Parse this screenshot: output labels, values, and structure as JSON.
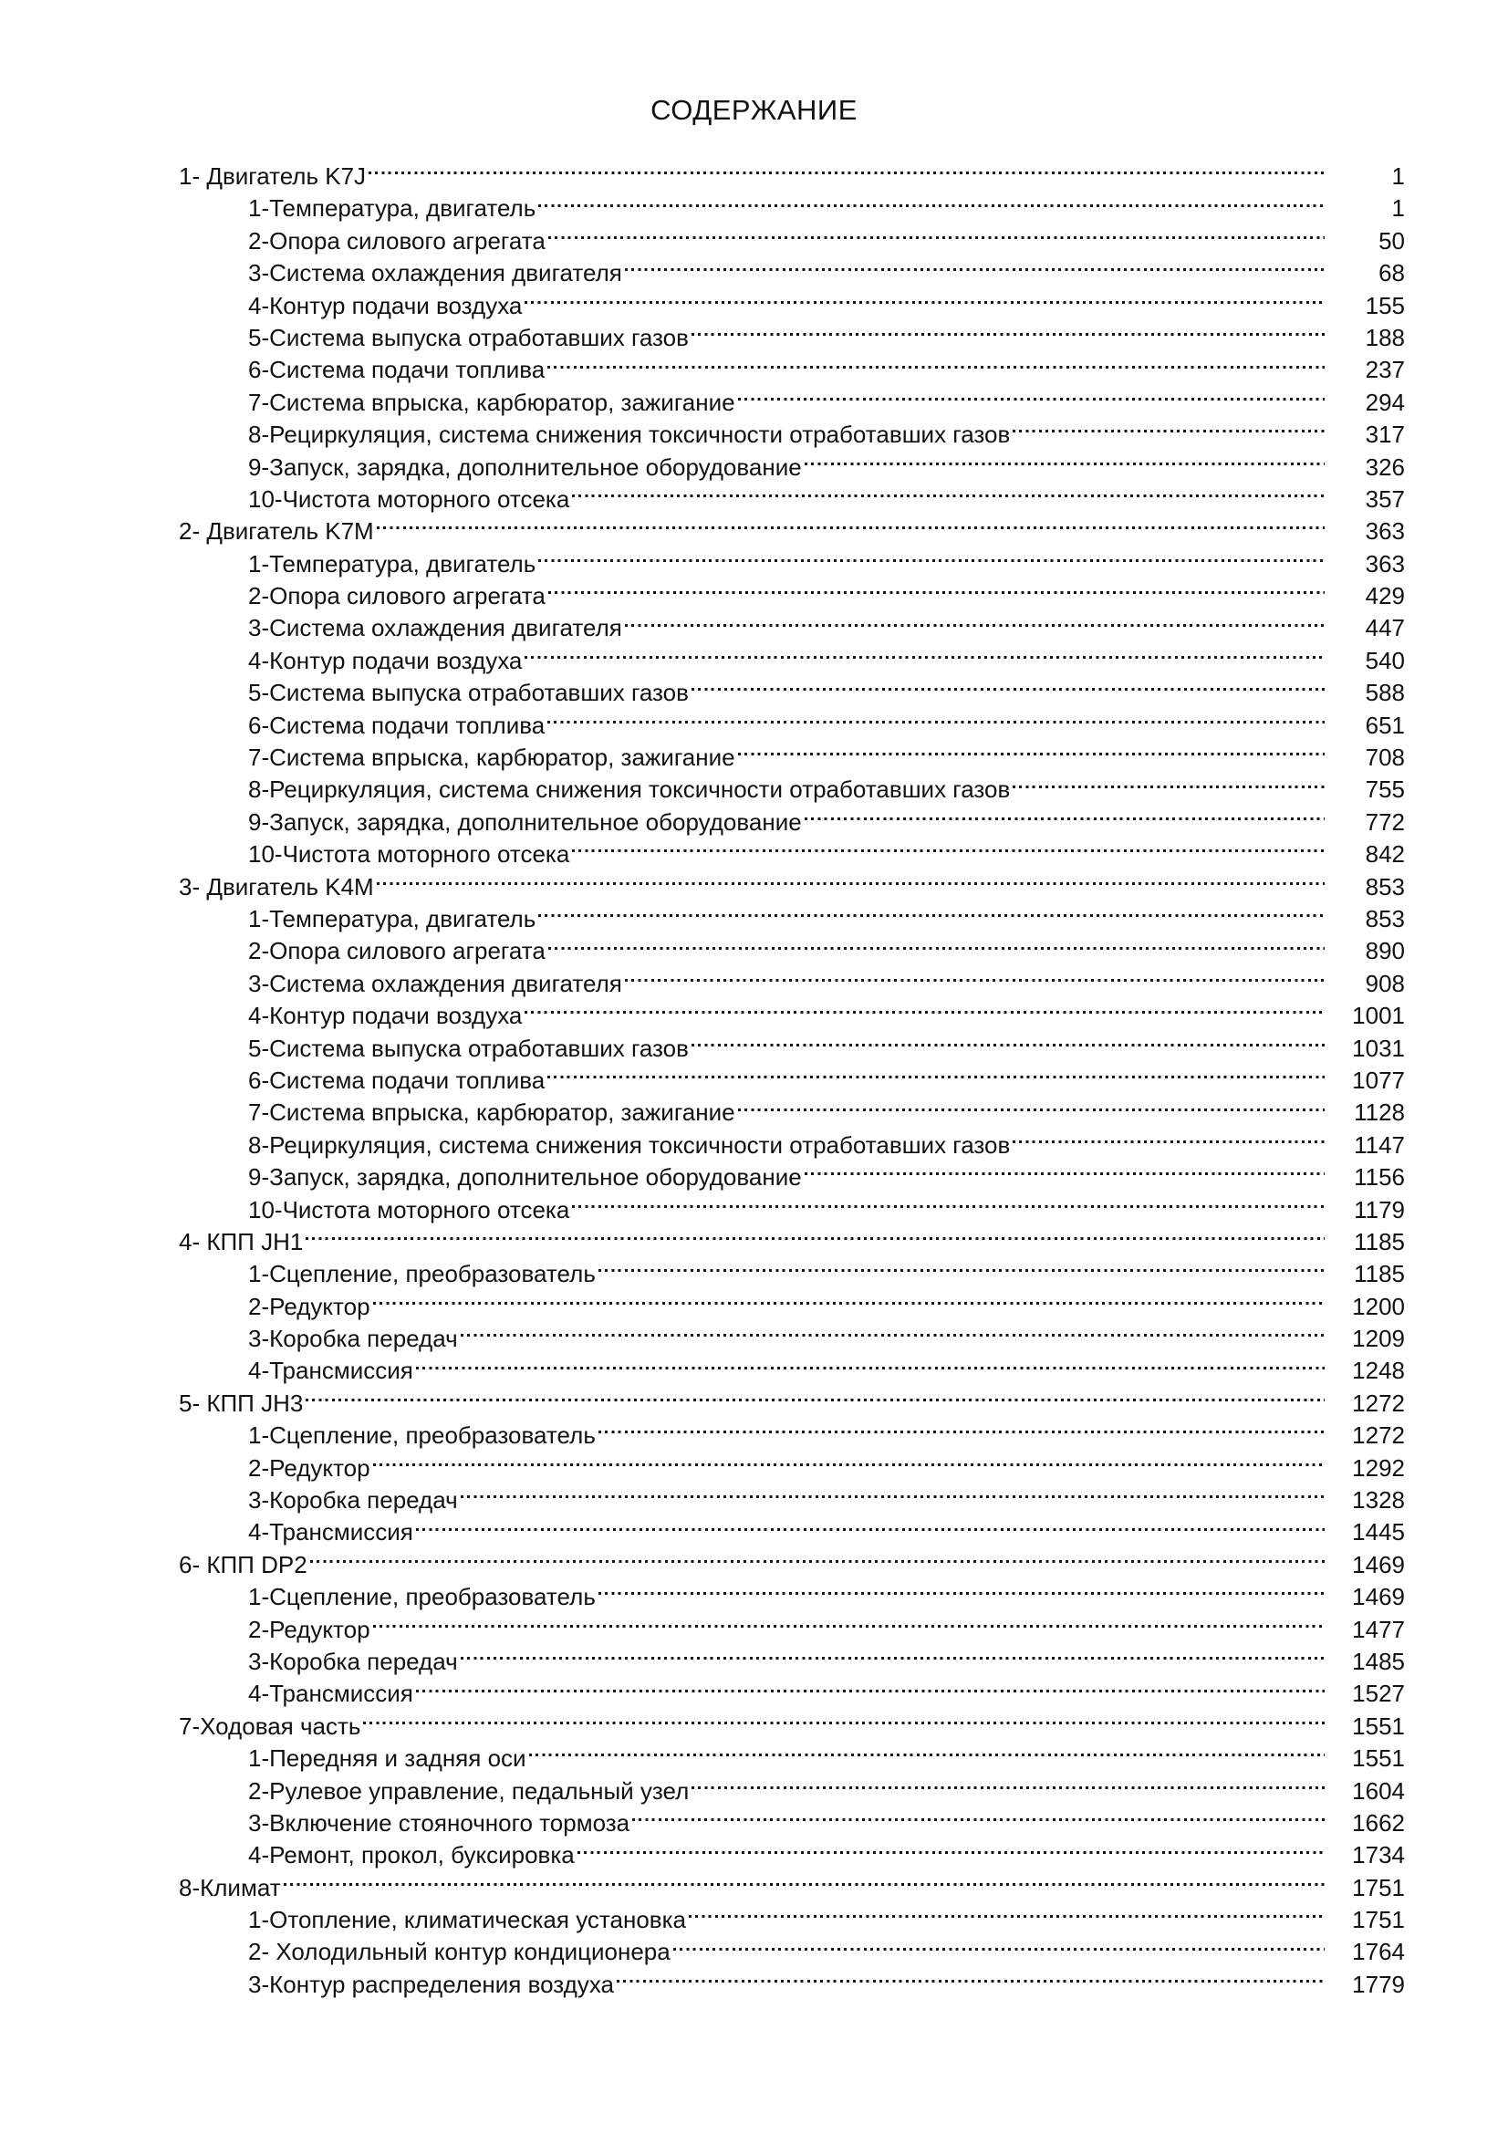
{
  "page": {
    "title": "СОДЕРЖАНИЕ"
  },
  "toc": {
    "sections": [
      {
        "label": "1- Двигатель K7J",
        "page": "1",
        "items": [
          {
            "label": "1-Температура, двигатель",
            "page": "1"
          },
          {
            "label": "2-Опора силового агрегата",
            "page": "50"
          },
          {
            "label": "3-Система охлаждения двигателя",
            "page": "68"
          },
          {
            "label": "4-Контур подачи воздуха",
            "page": "155"
          },
          {
            "label": "5-Система выпуска отработавших газов",
            "page": "188"
          },
          {
            "label": "6-Система подачи топлива",
            "page": "237"
          },
          {
            "label": "7-Система впрыска, карбюратор, зажигание",
            "page": "294"
          },
          {
            "label": "8-Рециркуляция, система снижения токсичности отработавших газов",
            "page": "317"
          },
          {
            "label": "9-Запуск, зарядка, дополнительное оборудование",
            "page": "326"
          },
          {
            "label": "10-Чистота моторного отсека",
            "page": "357"
          }
        ]
      },
      {
        "label": "2- Двигатель K7M",
        "page": "363",
        "items": [
          {
            "label": "1-Температура, двигатель",
            "page": "363"
          },
          {
            "label": "2-Опора силового агрегата",
            "page": "429"
          },
          {
            "label": "3-Система охлаждения двигателя",
            "page": "447"
          },
          {
            "label": "4-Контур подачи воздуха",
            "page": "540"
          },
          {
            "label": "5-Система выпуска отработавших газов",
            "page": "588"
          },
          {
            "label": "6-Система подачи топлива",
            "page": "651"
          },
          {
            "label": "7-Система впрыска, карбюратор, зажигание",
            "page": "708"
          },
          {
            "label": "8-Рециркуляция, система снижения токсичности отработавших газов",
            "page": "755"
          },
          {
            "label": "9-Запуск, зарядка, дополнительное оборудование",
            "page": "772"
          },
          {
            "label": "10-Чистота моторного отсека",
            "page": "842"
          }
        ]
      },
      {
        "label": "3- Двигатель K4M",
        "page": "853",
        "items": [
          {
            "label": "1-Температура, двигатель",
            "page": "853"
          },
          {
            "label": "2-Опора силового агрегата",
            "page": "890"
          },
          {
            "label": "3-Система охлаждения двигателя",
            "page": "908"
          },
          {
            "label": "4-Контур подачи воздуха",
            "page": "1001"
          },
          {
            "label": "5-Система выпуска отработавших газов",
            "page": "1031"
          },
          {
            "label": "6-Система подачи топлива",
            "page": "1077"
          },
          {
            "label": "7-Система впрыска, карбюратор, зажигание",
            "page": "1128"
          },
          {
            "label": "8-Рециркуляция, система снижения токсичности отработавших газов",
            "page": "1147"
          },
          {
            "label": "9-Запуск, зарядка, дополнительное оборудование",
            "page": "1156"
          },
          {
            "label": "10-Чистота моторного отсека",
            "page": "1179"
          }
        ]
      },
      {
        "label": "4- КПП JH1",
        "page": "1185",
        "items": [
          {
            "label": "1-Сцепление, преобразователь",
            "page": "1185"
          },
          {
            "label": "2-Редуктор",
            "page": "1200"
          },
          {
            "label": "3-Коробка передач",
            "page": "1209"
          },
          {
            "label": "4-Трансмиссия",
            "page": "1248"
          }
        ]
      },
      {
        "label": "5- КПП JH3",
        "page": "1272",
        "items": [
          {
            "label": "1-Сцепление, преобразователь",
            "page": "1272"
          },
          {
            "label": "2-Редуктор",
            "page": "1292"
          },
          {
            "label": "3-Коробка передач",
            "page": "1328"
          },
          {
            "label": "4-Трансмиссия",
            "page": "1445"
          }
        ]
      },
      {
        "label": "6- КПП DP2",
        "page": "1469",
        "items": [
          {
            "label": "1-Сцепление, преобразователь",
            "page": "1469"
          },
          {
            "label": "2-Редуктор",
            "page": "1477"
          },
          {
            "label": "3-Коробка передач",
            "page": "1485"
          },
          {
            "label": "4-Трансмиссия",
            "page": "1527"
          }
        ]
      },
      {
        "label": "7-Ходовая часть",
        "page": "1551",
        "items": [
          {
            "label": "1-Передняя и задняя оси",
            "page": "1551"
          },
          {
            "label": "2-Рулевое управление, педальный узел",
            "page": "1604"
          },
          {
            "label": "3-Включение стояночного тормоза",
            "page": "1662"
          },
          {
            "label": "4-Ремонт, прокол, буксировка",
            "page": "1734"
          }
        ]
      },
      {
        "label": "8-Климат",
        "page": "1751",
        "items": [
          {
            "label": "1-Отопление, климатическая установка",
            "page": "1751"
          },
          {
            "label": "2- Холодильный контур кондиционера",
            "page": "1764"
          },
          {
            "label": "3-Контур распределения воздуха",
            "page": "1779"
          }
        ]
      }
    ]
  }
}
